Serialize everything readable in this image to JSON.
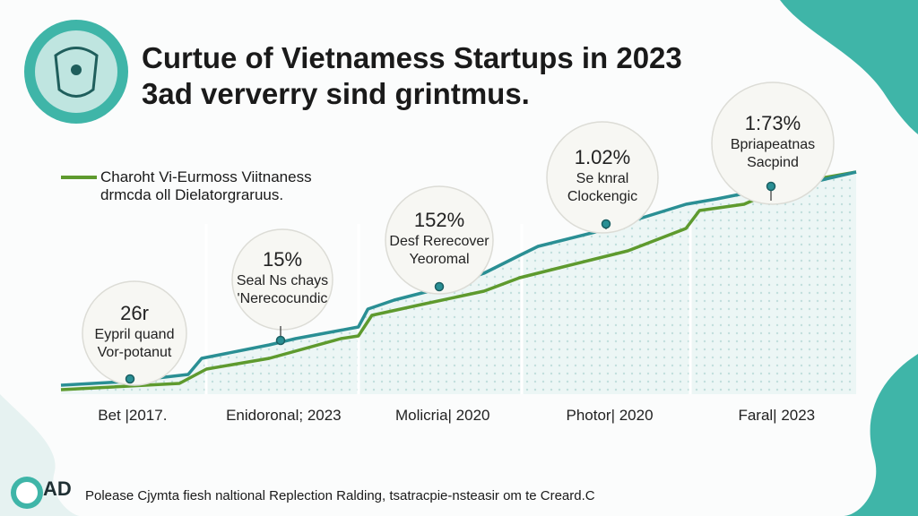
{
  "chart_data": {
    "type": "line",
    "title": "Curtue of Vietnamess Startups in 2023",
    "subtitle": "3ad ververry sind grintmus.",
    "xlim": [
      0,
      100
    ],
    "ylim": [
      0,
      100
    ],
    "xticks": [
      {
        "value": 9,
        "label": "Bet |2017."
      },
      {
        "value": 28,
        "label": "Enidoronal; 2023"
      },
      {
        "value": 48,
        "label": "Molicria| 2020"
      },
      {
        "value": 69,
        "label": "Photor| 2020"
      },
      {
        "value": 90,
        "label": "Faral| 2023"
      }
    ],
    "series": [
      {
        "color": "#2a8f94",
        "x": [
          0,
          8.1,
          16,
          17.7,
          26.2,
          29.5,
          37.4,
          38.6,
          41.9,
          47.6,
          53.2,
          57.7,
          60,
          69,
          71.3,
          78.6,
          82.5,
          89.3,
          91.5,
          96.1,
          100
        ],
        "values": [
          4,
          5.6,
          8.8,
          16,
          22,
          24.8,
          30,
          38,
          42,
          47.2,
          54,
          62,
          66,
          74,
          76.8,
          84.8,
          87.2,
          92,
          92,
          96,
          99.2
        ]
      },
      {
        "name": "Charoht Vi-Eurmoss Viitnaness drmcda oll Dielatorgraruus.",
        "color": "#5e9a2e",
        "x": [
          0,
          14.9,
          18.3,
          26.2,
          35.2,
          37.4,
          39.1,
          45.3,
          53.2,
          57.7,
          62.2,
          71.3,
          78.6,
          80.3,
          85.9,
          89.3,
          94.9,
          100
        ],
        "values": [
          2,
          4.8,
          11.2,
          16,
          24.8,
          26,
          35.2,
          40,
          46,
          52,
          56,
          64,
          74,
          82,
          84.8,
          90,
          96,
          99.2
        ]
      }
    ],
    "annotations": [
      {
        "label": "26r",
        "text": [
          "Eypril quand",
          "Vor-potanut"
        ]
      },
      {
        "label": "15%",
        "text": [
          "Seal Ns chays",
          "'Nerecocundic"
        ]
      },
      {
        "label": "152%",
        "text": [
          "Desf Rerecover",
          "Yeoromal"
        ]
      },
      {
        "label": "1.02%",
        "text": [
          "Se knral",
          "Clockengic"
        ]
      },
      {
        "label": "1:73%",
        "text": [
          "Bpriapeatnas",
          "Sacpind"
        ]
      }
    ],
    "logo": "AD",
    "footnote": "Polease Cjymta fiesh naltional Replection Ralding, tsatracpie-nsteasir om te Creard.C"
  }
}
